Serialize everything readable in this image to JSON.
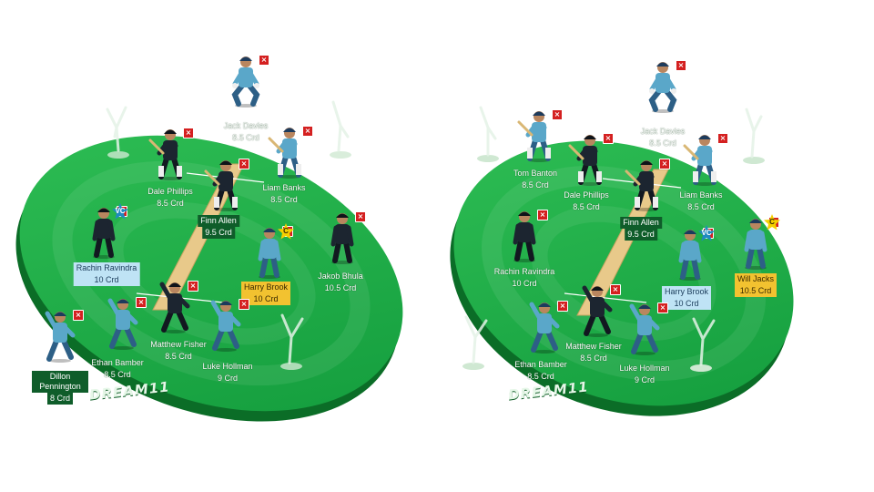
{
  "brand": "DREAM11",
  "colors": {
    "field": "#22a645",
    "field_dark": "#138a36",
    "field_edge": "#0b6d27",
    "pitch": "#e8c98a",
    "vc_badge": "#1f8ac0",
    "cap_badge": "#f5d000",
    "cross": "#d42020",
    "jersey_light": "#5aa7c9",
    "jersey_dark": "#1c2530"
  },
  "fields": [
    {
      "players": [
        {
          "name": "Jack Davies",
          "credits": "8.5 Crd",
          "style": "plain",
          "pose": "keeper",
          "kit": "light"
        },
        {
          "name": "Dale Phillips",
          "credits": "8.5 Crd",
          "style": "plain",
          "pose": "bat",
          "kit": "dark"
        },
        {
          "name": "Liam Banks",
          "credits": "8.5 Crd",
          "style": "plain",
          "pose": "bat",
          "kit": "light"
        },
        {
          "name": "Finn Allen",
          "credits": "9.5 Crd",
          "style": "boxed",
          "pose": "bat",
          "kit": "dark"
        },
        {
          "name": "Rachin Ravindra",
          "credits": "10 Crd",
          "style": "vc",
          "pose": "stand",
          "kit": "dark",
          "role": "VC"
        },
        {
          "name": "Harry Brook",
          "credits": "10 Crd",
          "style": "cap",
          "pose": "stand",
          "kit": "light",
          "role": "C"
        },
        {
          "name": "Jakob Bhula",
          "credits": "10.5 Crd",
          "style": "plain",
          "pose": "stand",
          "kit": "dark"
        },
        {
          "name": "Matthew Fisher",
          "credits": "8.5 Crd",
          "style": "plain",
          "pose": "bowl",
          "kit": "dark"
        },
        {
          "name": "Ethan Bamber",
          "credits": "8.5 Crd",
          "style": "plain",
          "pose": "bowl",
          "kit": "light"
        },
        {
          "name": "Luke Hollman",
          "credits": "9 Crd",
          "style": "plain",
          "pose": "bowl",
          "kit": "light"
        },
        {
          "name": "Dillon Pennington",
          "credits": "8 Crd",
          "style": "boxed",
          "pose": "bowl",
          "kit": "light"
        }
      ]
    },
    {
      "players": [
        {
          "name": "Jack Davies",
          "credits": "8.5 Crd",
          "style": "plain",
          "pose": "keeper",
          "kit": "light"
        },
        {
          "name": "Tom Banton",
          "credits": "8.5 Crd",
          "style": "plain",
          "pose": "bat",
          "kit": "light"
        },
        {
          "name": "Dale Phillips",
          "credits": "8.5 Crd",
          "style": "plain",
          "pose": "bat",
          "kit": "dark"
        },
        {
          "name": "Liam Banks",
          "credits": "8.5 Crd",
          "style": "plain",
          "pose": "bat",
          "kit": "light"
        },
        {
          "name": "Finn Allen",
          "credits": "9.5 Crd",
          "style": "boxed",
          "pose": "bat",
          "kit": "dark"
        },
        {
          "name": "Rachin Ravindra",
          "credits": "10 Crd",
          "style": "plain",
          "pose": "stand",
          "kit": "dark"
        },
        {
          "name": "Harry Brook",
          "credits": "10 Crd",
          "style": "vc",
          "pose": "stand",
          "kit": "light",
          "role": "VC"
        },
        {
          "name": "Will Jacks",
          "credits": "10.5 Crd",
          "style": "cap",
          "pose": "stand",
          "kit": "light",
          "role": "C"
        },
        {
          "name": "Matthew Fisher",
          "credits": "8.5 Crd",
          "style": "plain",
          "pose": "bowl",
          "kit": "dark"
        },
        {
          "name": "Ethan Bamber",
          "credits": "8.5 Crd",
          "style": "plain",
          "pose": "bowl",
          "kit": "light"
        },
        {
          "name": "Luke Hollman",
          "credits": "9 Crd",
          "style": "plain",
          "pose": "bowl",
          "kit": "light"
        }
      ]
    }
  ]
}
